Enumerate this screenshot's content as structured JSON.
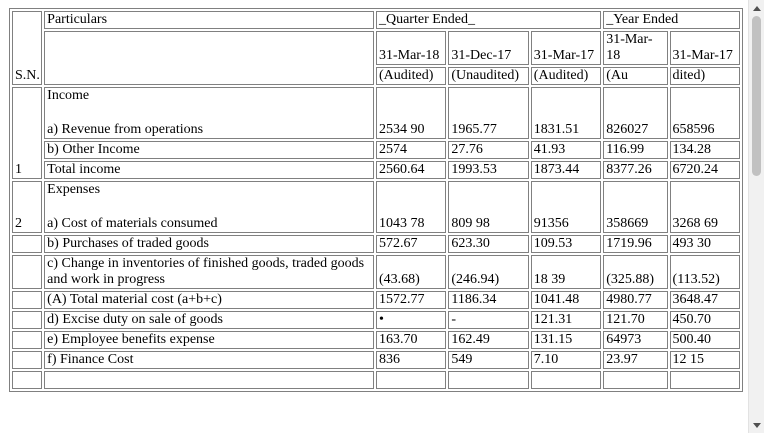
{
  "table": {
    "header": {
      "sn": "S.N.",
      "particulars": "Particulars",
      "quarter_ended": "_Quarter Ended_",
      "year_ended": "_Year Ended",
      "dates": [
        "31-Mar-18",
        "31-Dec-17",
        "31-Mar-17",
        "31-Mar-18",
        "31-Mar-17"
      ],
      "status": [
        "(Audited)",
        "(Unaudited)",
        "(Audited)",
        "(Au",
        "dited)"
      ]
    },
    "section1": {
      "sn": "1",
      "title": "Income"
    },
    "section2": {
      "sn": "2",
      "title": "Expenses"
    },
    "rows": [
      {
        "label": "a) Revenue from operations",
        "values": [
          "2534 90",
          "1965.77",
          "1831.51",
          "826027",
          "658596"
        ]
      },
      {
        "label": "b) Other Income",
        "values": [
          "2574",
          "27.76",
          "41.93",
          "116.99",
          "134.28"
        ]
      },
      {
        "label": "Total income",
        "values": [
          "2560.64",
          "1993.53",
          "1873.44",
          "8377.26",
          "6720.24"
        ]
      },
      {
        "label": "a) Cost of materials consumed",
        "values": [
          "1043 78",
          "809 98",
          "91356",
          "358669",
          "3268 69"
        ]
      },
      {
        "label": "b) Purchases of traded goods",
        "values": [
          "572.67",
          "623.30",
          "109.53",
          "1719.96",
          "493 30"
        ]
      },
      {
        "label": "c) Change in inventories of finished goods, traded goods and work in progress",
        "values": [
          "(43.68)",
          "(246.94)",
          "18 39",
          "(325.88)",
          "(113.52)"
        ]
      },
      {
        "label": "(A) Total material cost (a+b+c)",
        "values": [
          "1572.77",
          "1186.34",
          "1041.48",
          "4980.77",
          "3648.47"
        ]
      },
      {
        "label": "d) Excise duty on sale of goods",
        "values": [
          "•",
          "-",
          "121.31",
          "121.70",
          "450.70"
        ]
      },
      {
        "label": "e) Employee benefits expense",
        "values": [
          "163.70",
          "162.49",
          "131.15",
          "64973",
          "500.40"
        ]
      },
      {
        "label": "f) Finance Cost",
        "values": [
          "836",
          "549",
          "7.10",
          "23.97",
          "12 15"
        ]
      }
    ]
  }
}
